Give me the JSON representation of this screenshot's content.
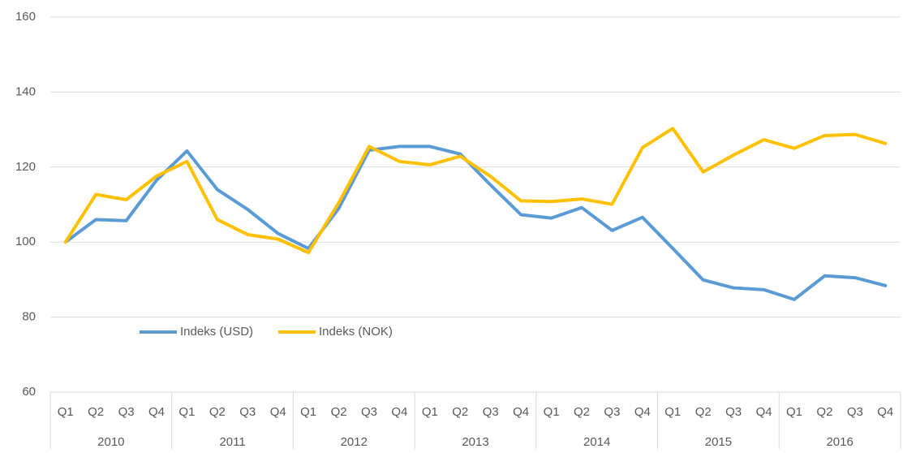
{
  "chart_data": {
    "type": "line",
    "categories": [
      "Q1",
      "Q2",
      "Q3",
      "Q4",
      "Q1",
      "Q2",
      "Q3",
      "Q4",
      "Q1",
      "Q2",
      "Q3",
      "Q4",
      "Q1",
      "Q2",
      "Q3",
      "Q4",
      "Q1",
      "Q2",
      "Q3",
      "Q4",
      "Q1",
      "Q2",
      "Q3",
      "Q4",
      "Q1",
      "Q2",
      "Q3",
      "Q4"
    ],
    "groups": [
      "2010",
      "2011",
      "2012",
      "2013",
      "2014",
      "2015",
      "2016"
    ],
    "series": [
      {
        "name": "Indeks (USD)",
        "color": "#5b9bd5",
        "values": [
          100,
          106,
          105.7,
          116.5,
          124.3,
          114,
          108.7,
          102.3,
          98.3,
          109,
          124.5,
          125.5,
          125.5,
          123.5,
          115.2,
          107.3,
          106.4,
          109.2,
          103.1,
          106.6,
          98.3,
          89.9,
          87.8,
          87.3,
          84.7,
          91,
          90.5,
          88.4
        ]
      },
      {
        "name": "Indeks (NOK)",
        "color": "#ffc000",
        "values": [
          100,
          112.7,
          111.3,
          117.6,
          121.5,
          106,
          102,
          100.8,
          97.2,
          110.5,
          125.5,
          121.5,
          120.6,
          122.9,
          117.5,
          111,
          110.8,
          111.5,
          110.1,
          125.2,
          130.3,
          118.7,
          123.2,
          127.3,
          125,
          128.4,
          128.7,
          126.3
        ]
      }
    ],
    "ylim": [
      60,
      160
    ],
    "yticks": [
      60,
      80,
      100,
      120,
      140,
      160
    ],
    "grid": true,
    "legend": "lower-left"
  }
}
